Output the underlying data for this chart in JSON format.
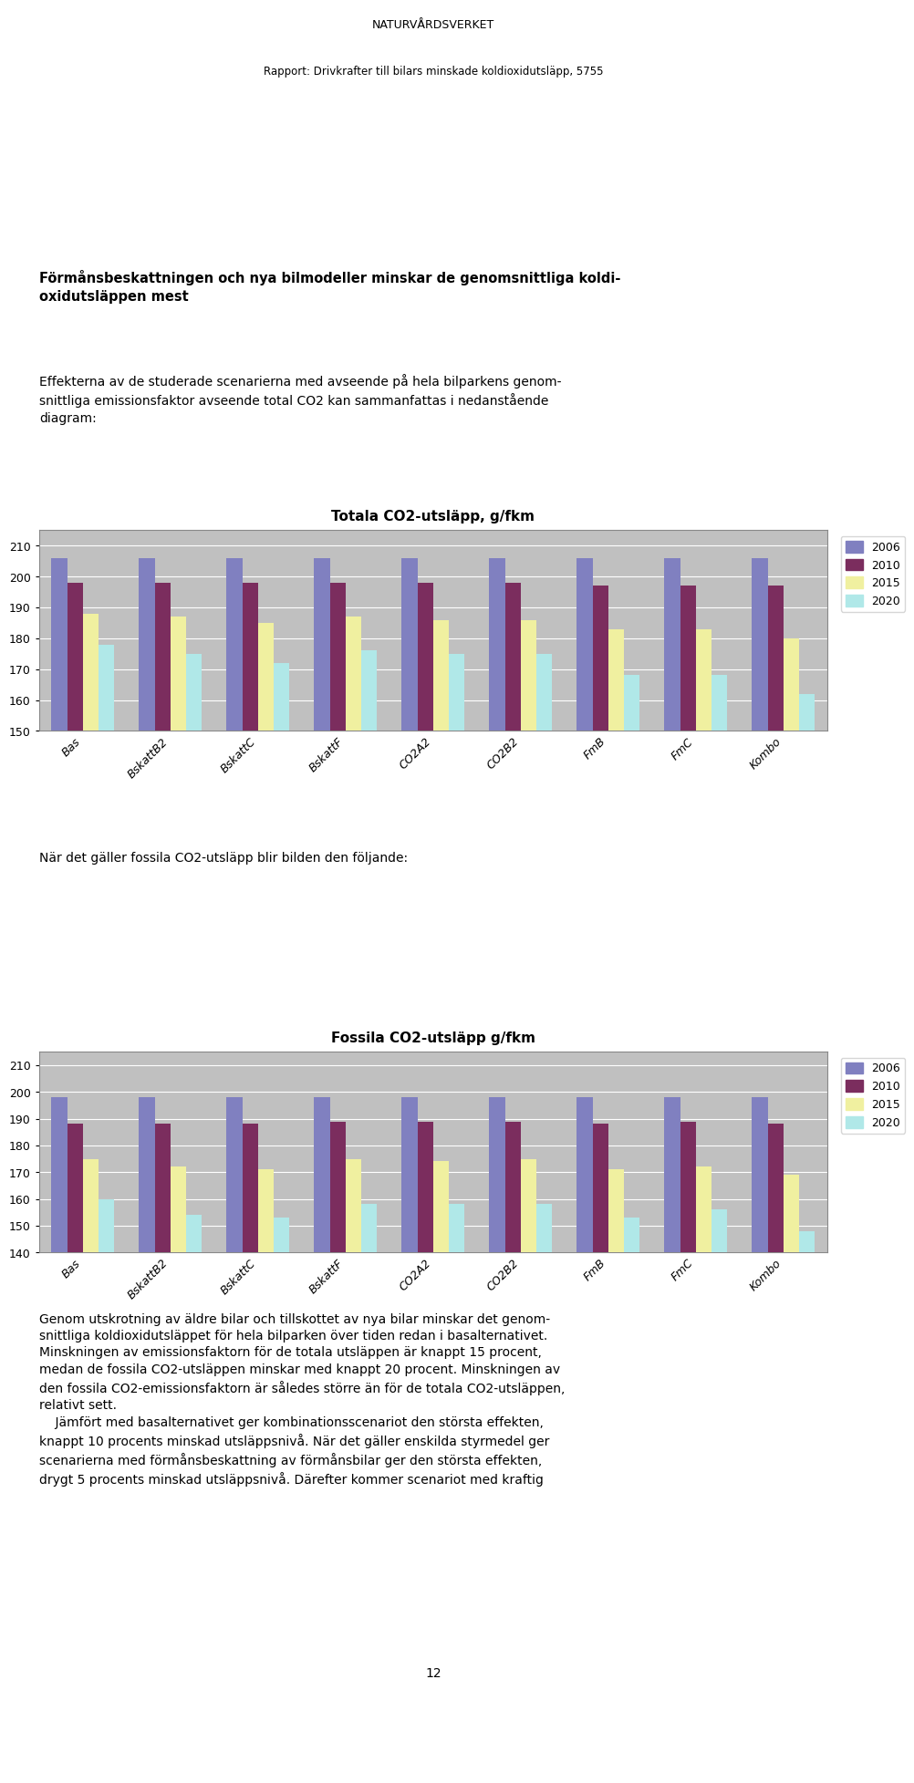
{
  "page_title": "NATURVÅRDSVERKET",
  "page_subtitle": "Rapport: Drivkrafter till bilars minskade koldioxidutsläpp, 5755",
  "heading": "Förmånsbeskattningen och nya bilmodeller minskar de genomsnittliga koldi-oxidutsläppen mest",
  "body_text1": "Effekterna av de studerade scenarierna med avseende på hela bilparkens genom-\nsnittliga emissionsfaktor avseende total CO2 kan sammanfattas i nedanstående\ndiagram:",
  "between_text": "När det gäller fossila CO2-utsläpp blir bilden den följande:",
  "body_text2": "Genom utskrotning av äldre bilar och tillskottet av nya bilar minskar det genom-\nsnittliga koldioxidutsläppet för hela bilparken över tiden redan i basalternativet.\nMinskningen av emissionsfaktorn för de totala utsläppen är knappt 15 procent,\nmedan de fossila CO2-utsläppen minskar med knappt 20 procent. Minskningen av\nden fossila CO2-emissionsfaktorn är således större än för de totala CO2-utsläppen,\nrelativt sett.\n    Jämfört med basalternativet ger kombinationsscenariot den största effekten,\nknappt 10 procents minskad utsläppsnivå. När det gäller enskilda styrmedel ger\nscenarierna med förmånsbeskattning av förmånsbilar ger den största effekten,\ndrygt 5 procents minskad utsläppsnivå. Därefter kommer scenariot med kraftig",
  "page_number": "12",
  "chart1_title": "Totala CO2-utsläpp, g/fkm",
  "chart2_title": "Fossila CO2-utsläpp g/fkm",
  "categories": [
    "Bas",
    "BskattB2",
    "BskattC",
    "BskattF",
    "CO2A2",
    "CO2B2",
    "FmB",
    "FmC",
    "Kombo"
  ],
  "chart1_data": {
    "2006": [
      206,
      206,
      206,
      206,
      206,
      206,
      206,
      206,
      206
    ],
    "2010": [
      198,
      198,
      198,
      198,
      198,
      198,
      197,
      197,
      197
    ],
    "2015": [
      188,
      187,
      185,
      187,
      186,
      186,
      183,
      183,
      180
    ],
    "2020": [
      178,
      175,
      172,
      176,
      175,
      175,
      168,
      168,
      162
    ]
  },
  "chart2_data": {
    "2006": [
      198,
      198,
      198,
      198,
      198,
      198,
      198,
      198,
      198
    ],
    "2010": [
      188,
      188,
      188,
      189,
      189,
      189,
      188,
      189,
      188
    ],
    "2015": [
      175,
      172,
      171,
      175,
      174,
      175,
      171,
      172,
      169
    ],
    "2020": [
      160,
      154,
      153,
      158,
      158,
      158,
      153,
      156,
      148
    ]
  },
  "legend_labels": [
    "2006",
    "2010",
    "2015",
    "2020"
  ],
  "bar_colors": {
    "2006": "#8080C0",
    "2010": "#7B2D5E",
    "2015": "#F0F0A0",
    "2020": "#B0E8E8"
  },
  "chart1_ylim": [
    150,
    215
  ],
  "chart1_yticks": [
    150,
    160,
    170,
    180,
    190,
    200,
    210
  ],
  "chart2_ylim": [
    140,
    215
  ],
  "chart2_yticks": [
    140,
    150,
    160,
    170,
    180,
    190,
    200,
    210
  ],
  "chart_bg": "#C0C0C0",
  "chart_border": "#888888",
  "grid_color": "#FFFFFF",
  "page_bg": "#FFFFFF"
}
